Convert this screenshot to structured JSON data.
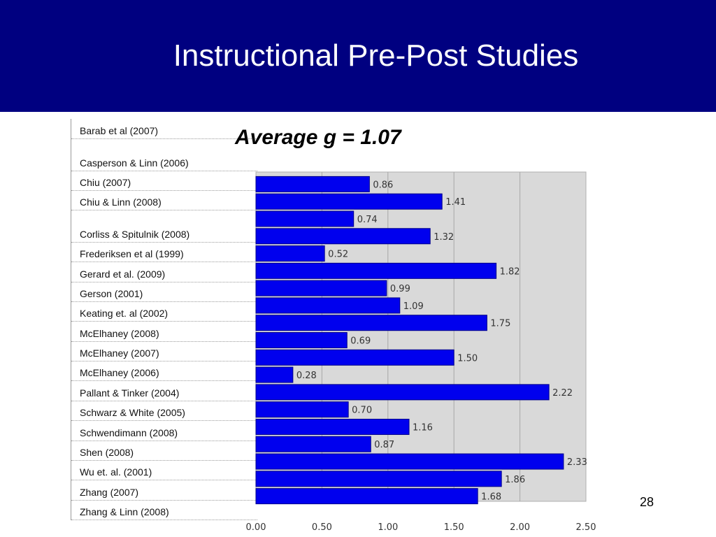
{
  "slide": {
    "title": "Instructional Pre-Post Studies",
    "average_label": "Average g = 1.07",
    "page_number": "28",
    "header_color": "#000080"
  },
  "studies": [
    "Barab et al (2007)",
    "Casperson & Linn (2006)",
    "Chiu (2007)",
    "Chiu & Linn (2008)",
    "Corliss & Spitulnik (2008)",
    "Frederiksen et al (1999)",
    "Gerard et al. (2009)",
    "Gerson (2001)",
    "Keating et. al (2002)",
    "McElhaney (2008)",
    "McElhaney (2007)",
    "McElhaney (2006)",
    "Pallant & Tinker (2004)",
    "Schwarz & White (2005)",
    "Schwendimann (2008)",
    "Shen (2008)",
    "Wu et. al. (2001)",
    "Zhang (2007)",
    "Zhang & Linn (2008)"
  ],
  "chart_data": {
    "type": "bar",
    "orientation": "horizontal",
    "values": [
      0.86,
      1.41,
      0.74,
      1.32,
      0.52,
      1.82,
      0.99,
      1.09,
      1.75,
      0.69,
      1.5,
      0.28,
      2.22,
      0.7,
      1.16,
      0.87,
      2.33,
      1.86,
      1.68
    ],
    "value_labels": [
      "0.86",
      "1.41",
      "0.74",
      "1.32",
      "0.52",
      "1.82",
      "0.99",
      "1.09",
      "1.75",
      "0.69",
      "1.50",
      "0.28",
      "2.22",
      "0.70",
      "1.16",
      "0.87",
      "2.33",
      "1.86",
      "1.68"
    ],
    "xlim": [
      0,
      2.5
    ],
    "x_ticks": [
      "0.00",
      "0.50",
      "1.00",
      "1.50",
      "2.00",
      "2.50"
    ],
    "grid": true,
    "bar_color": "#0000ee",
    "plot_background": "#d9d9d9"
  }
}
